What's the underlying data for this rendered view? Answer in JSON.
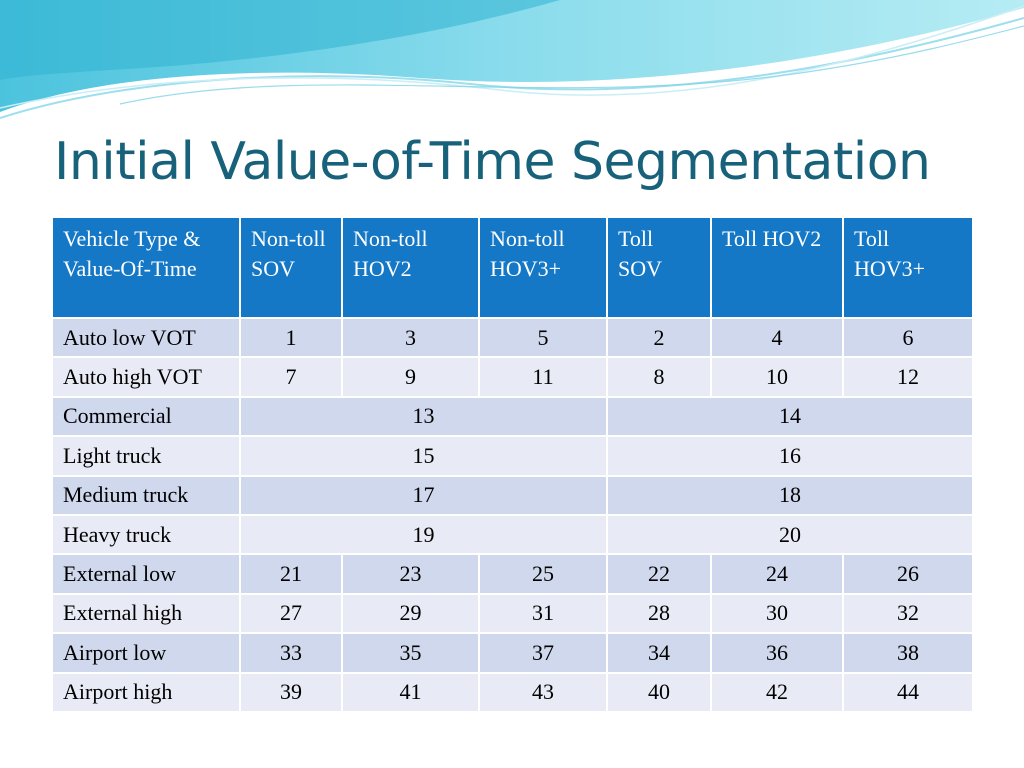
{
  "slide": {
    "title": "Initial Value-of-Time Segmentation"
  },
  "table": {
    "headers": [
      "Vehicle Type & Value-Of-Time",
      "Non-toll SOV",
      "Non-toll HOV2",
      "Non-toll HOV3+",
      "Toll SOV",
      "Toll HOV2",
      "Toll HOV3+"
    ],
    "rows": [
      {
        "label": "Auto low VOT",
        "values": [
          "1",
          "3",
          "5",
          "2",
          "4",
          "6"
        ]
      },
      {
        "label": "Auto high VOT",
        "values": [
          "7",
          "9",
          "11",
          "8",
          "10",
          "12"
        ]
      },
      {
        "label": "Commercial",
        "nontoll": "13",
        "toll": "14"
      },
      {
        "label": "Light truck",
        "nontoll": "15",
        "toll": "16"
      },
      {
        "label": "Medium truck",
        "nontoll": "17",
        "toll": "18"
      },
      {
        "label": "Heavy truck",
        "nontoll": "19",
        "toll": "20"
      },
      {
        "label": "External low",
        "values": [
          "21",
          "23",
          "25",
          "22",
          "24",
          "26"
        ]
      },
      {
        "label": "External high",
        "values": [
          "27",
          "29",
          "31",
          "28",
          "30",
          "32"
        ]
      },
      {
        "label": "Airport low",
        "values": [
          "33",
          "35",
          "37",
          "34",
          "36",
          "38"
        ]
      },
      {
        "label": "Airport high",
        "values": [
          "39",
          "41",
          "43",
          "40",
          "42",
          "44"
        ]
      }
    ]
  },
  "colors": {
    "title": "#17627a",
    "header_bg": "#1478c6",
    "row_odd": "#cfd8ec",
    "row_even": "#e8ebf5"
  }
}
